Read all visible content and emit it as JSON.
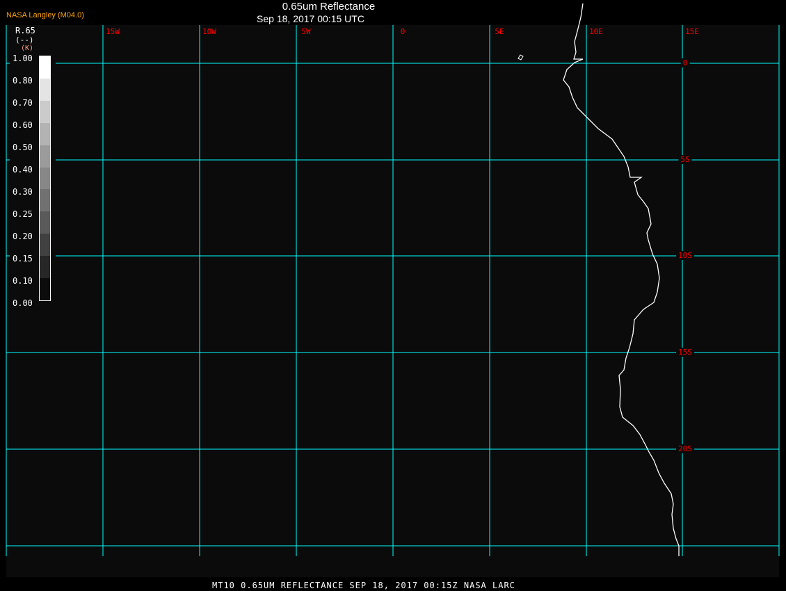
{
  "header": {
    "title": "0.65um Reflectance",
    "subtitle": "Sep 18, 2017 00:15 UTC",
    "brand": "NASA Langley (M04.0)"
  },
  "footer": "MT10  0.65UM REFLECTANCE   SEP 18, 2017 00:15Z   NASA LARC",
  "colors": {
    "grid": "#00ffff",
    "labels": "#ff0000",
    "coast": "#ffffff",
    "background": "#0b0b0b"
  },
  "map": {
    "lon_labels": [
      "15W",
      "10W",
      "5W",
      "0",
      "5E",
      "10E",
      "15E"
    ],
    "lat_labels": [
      "0",
      "5S",
      "10S",
      "15S",
      "20S"
    ]
  },
  "legend": {
    "variable": "R.65",
    "unit": "(--)",
    "unit2": "(K)",
    "ticks": [
      "1.00",
      "0.80",
      "0.70",
      "0.60",
      "0.50",
      "0.40",
      "0.30",
      "0.25",
      "0.20",
      "0.15",
      "0.10",
      "0.00"
    ],
    "shades": [
      "#ffffff",
      "#e4e4e4",
      "#cbcbcb",
      "#b3b3b3",
      "#9b9b9b",
      "#878787",
      "#717171",
      "#5a5a5a",
      "#414141",
      "#272727",
      "#0c0c0c"
    ]
  }
}
